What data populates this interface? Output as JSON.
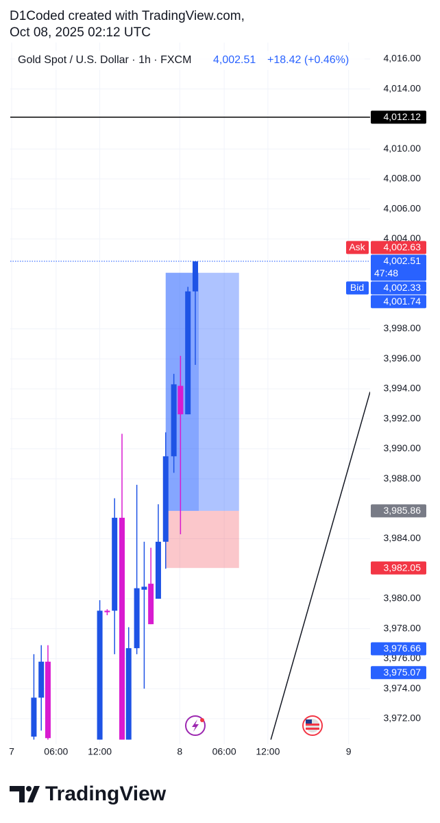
{
  "header": {
    "line1": "D1Coded created with TradingView.com,",
    "line2": "Oct 08, 2025 02:12 UTC"
  },
  "chart_data": {
    "type": "candlestick",
    "legend": {
      "symbol": "Gold Spot / U.S. Dollar · 1h · FXCM",
      "last": "4,002.51",
      "change": "+18.42 (+0.46%)"
    },
    "up_color": "#1e53e5",
    "down_color": "#d81bd0",
    "x": [
      3.0,
      4.0,
      4.9,
      11.9,
      12.9,
      13.9,
      14.9,
      15.8,
      16.9,
      17.9,
      18.8,
      19.8,
      20.8,
      21.9,
      22.8,
      23.8,
      24.8
    ],
    "open": [
      3970.8,
      3973.4,
      3975.8,
      3970.6,
      3979.2,
      3979.2,
      3985.4,
      3970.6,
      3976.7,
      3980.6,
      3981.0,
      3980.0,
      3983.8,
      3989.5,
      3994.2,
      3992.3,
      4000.5
    ],
    "high": [
      3976.3,
      3976.9,
      3976.9,
      3979.9,
      3979.3,
      3986.7,
      3991.0,
      3978.1,
      3987.6,
      3983.8,
      3983.4,
      3986.3,
      3991.1,
      3995.0,
      3996.2,
      4000.8,
      4002.5
    ],
    "low": [
      3970.6,
      3971.2,
      3970.6,
      3970.6,
      3978.9,
      3976.3,
      3970.6,
      3970.6,
      3976.3,
      3974.0,
      3978.3,
      3980.0,
      3982.0,
      3988.4,
      3984.3,
      3992.3,
      3995.6
    ],
    "close": [
      3973.4,
      3975.8,
      3970.7,
      3979.2,
      3979.1,
      3985.4,
      3970.6,
      3976.7,
      3980.7,
      3980.8,
      3978.3,
      3983.8,
      3989.5,
      3994.3,
      3992.3,
      4000.5,
      4002.5
    ],
    "xlim": [
      0,
      48.4
    ],
    "xticks": [
      {
        "value": 0,
        "label": "7"
      },
      {
        "value": 6.0,
        "label": "06:00"
      },
      {
        "value": 11.9,
        "label": "12:00"
      },
      {
        "value": 22.7,
        "label": "8"
      },
      {
        "value": 28.7,
        "label": "06:00"
      },
      {
        "value": 34.6,
        "label": "12:00"
      },
      {
        "value": 45.5,
        "label": "9"
      }
    ],
    "ylim": [
      3970.3,
      4017.1
    ],
    "yticks": [
      {
        "value": 4016,
        "label": "4,016.00"
      },
      {
        "value": 4014,
        "label": "4,014.00"
      },
      {
        "value": 4010,
        "label": "4,010.00"
      },
      {
        "value": 4008,
        "label": "4,008.00"
      },
      {
        "value": 4006,
        "label": "4,006.00"
      },
      {
        "value": 4004,
        "label": "4,004.00"
      },
      {
        "value": 3998,
        "label": "3,998.00"
      },
      {
        "value": 3996,
        "label": "3,996.00"
      },
      {
        "value": 3994,
        "label": "3,994.00"
      },
      {
        "value": 3992,
        "label": "3,992.00"
      },
      {
        "value": 3990,
        "label": "3,990.00"
      },
      {
        "value": 3988,
        "label": "3,988.00"
      },
      {
        "value": 3984,
        "label": "3,984.00"
      },
      {
        "value": 3980,
        "label": "3,980.00"
      },
      {
        "value": 3978,
        "label": "3,978.00"
      },
      {
        "value": 3976,
        "label": "3,976.00"
      },
      {
        "value": 3974,
        "label": "3,974.00"
      },
      {
        "value": 3972,
        "label": "3,972.00"
      }
    ],
    "grid": true,
    "position": {
      "target": 4001.74,
      "entry": 3985.86,
      "stop": 3982.05,
      "x_start": 20.8,
      "x_end": 30.7
    },
    "trend_line": {
      "x": [
        35.0,
        48.4
      ],
      "y": [
        3970.6,
        3993.8
      ]
    },
    "price_tags": [
      {
        "value": 4012.12,
        "label": "4,012.12",
        "color": "#000000",
        "line": "solid"
      },
      {
        "value": 4002.63,
        "label": "4,002.63",
        "color": "#f23645",
        "side_label": "Ask"
      },
      {
        "value": 4002.51,
        "label": "4,002.51",
        "color": "#2962ff",
        "line": "dotted",
        "countdown": "47:48"
      },
      {
        "value": 4002.33,
        "label": "4,002.33",
        "color": "#2962ff",
        "side_label": "Bid"
      },
      {
        "value": 4001.74,
        "label": "4,001.74",
        "color": "#2962ff"
      },
      {
        "value": 3985.86,
        "label": "3,985.86",
        "color": "#787b86"
      },
      {
        "value": 3982.05,
        "label": "3,982.05",
        "color": "#f23645"
      },
      {
        "value": 3976.66,
        "label": "3,976.66",
        "color": "#2962ff"
      },
      {
        "value": 3975.07,
        "label": "3,975.07",
        "color": "#2962ff"
      }
    ]
  },
  "footer": {
    "logo": "TradingView"
  }
}
